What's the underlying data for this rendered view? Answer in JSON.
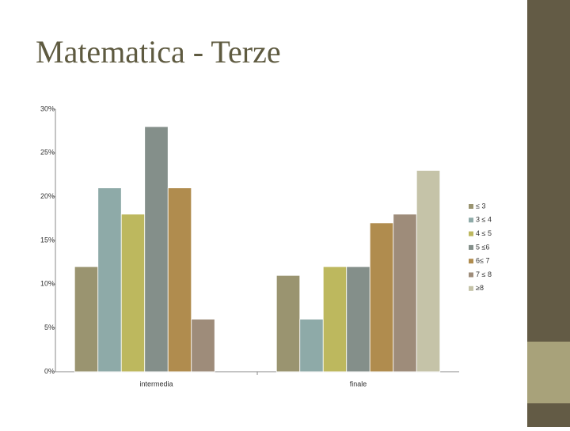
{
  "chart_data": {
    "type": "bar",
    "title": "Matematica - Terze",
    "categories": [
      "intermedia",
      "finale"
    ],
    "series": [
      {
        "name": "≤ 3",
        "color": "#9a9470",
        "values": [
          12,
          11
        ]
      },
      {
        "name": "3 ≤ 4",
        "color": "#8eaaa8",
        "values": [
          21,
          6
        ]
      },
      {
        "name": "4 ≤ 5",
        "color": "#bdb85e",
        "values": [
          18,
          12
        ]
      },
      {
        "name": "5 ≤6",
        "color": "#848f8a",
        "values": [
          28,
          12
        ]
      },
      {
        "name": "6≤ 7",
        "color": "#b08c4e",
        "values": [
          21,
          17
        ]
      },
      {
        "name": "7 ≤ 8",
        "color": "#9e8c7a",
        "values": [
          6,
          18
        ]
      },
      {
        "name": "≥8",
        "color": "#c5c3a8",
        "values": [
          0,
          23
        ]
      }
    ],
    "ylim": [
      0,
      30
    ],
    "yticks": [
      {
        "value": 0,
        "label": "0%"
      },
      {
        "value": 5,
        "label": "5%"
      },
      {
        "value": 10,
        "label": "10%"
      },
      {
        "value": 15,
        "label": "15%"
      },
      {
        "value": 20,
        "label": "20%"
      },
      {
        "value": 25,
        "label": "25%"
      },
      {
        "value": 30,
        "label": "30%"
      }
    ],
    "legend": "right"
  }
}
